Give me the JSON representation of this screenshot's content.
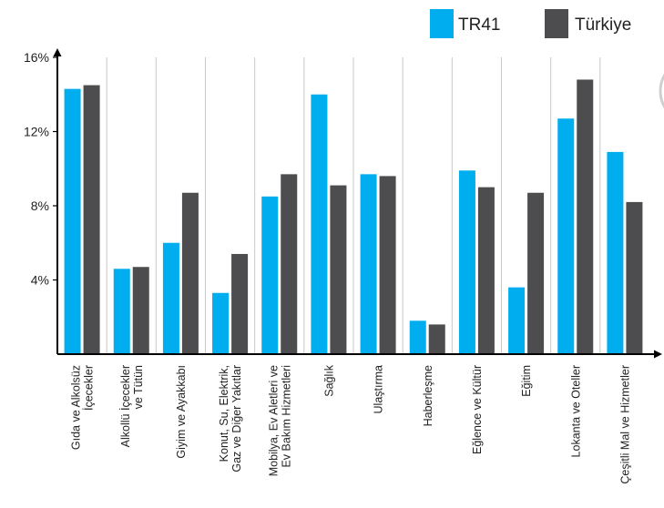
{
  "chart_data": {
    "type": "bar",
    "categories": [
      [
        "Gıda ve Alkolsüz",
        "İçecekler"
      ],
      [
        "Alkollü İçecekler",
        "ve Tütün"
      ],
      [
        "Giyim ve Ayakkabı"
      ],
      [
        "Konut, Su, Elektrik,",
        "Gaz ve Diğer Yakıtlar"
      ],
      [
        "Mobilya, Ev Aletleri ve",
        "Ev Bakım Hizmetleri"
      ],
      [
        "Sağlık"
      ],
      [
        "Ulaştırma"
      ],
      [
        "Haberleşme"
      ],
      [
        "Eğlence ve Kültür"
      ],
      [
        "Eğitim"
      ],
      [
        "Lokanta ve Oteller"
      ],
      [
        "Çeşitli Mal ve Hizmetler"
      ]
    ],
    "series": [
      {
        "name": "TR41",
        "color": "#00AEEF",
        "values": [
          14.3,
          4.6,
          6.0,
          3.3,
          8.5,
          14.0,
          9.7,
          1.8,
          9.9,
          3.6,
          12.7,
          10.9
        ]
      },
      {
        "name": "Türkiye",
        "color": "#4D4D4F",
        "values": [
          14.5,
          4.7,
          8.7,
          5.4,
          9.7,
          9.1,
          9.6,
          1.6,
          9.0,
          8.7,
          14.8,
          8.2
        ]
      }
    ],
    "yticks": [
      "4%",
      "8%",
      "12%",
      "16%"
    ],
    "ylim": [
      0,
      16
    ],
    "grid": "vertical",
    "legend": "top-right",
    "xlabel": "",
    "ylabel": "",
    "title": ""
  }
}
